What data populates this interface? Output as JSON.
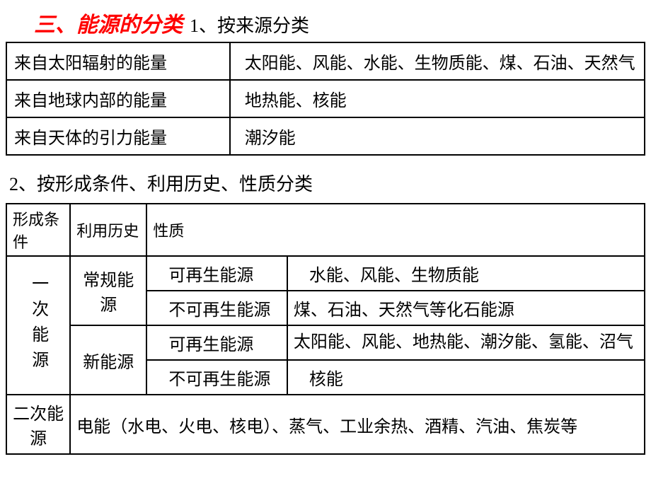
{
  "header": {
    "main_title": "三、能源的分类",
    "sub_title": "1、按来源分类"
  },
  "table1": {
    "rows": [
      {
        "left": "来自太阳辐射的能量",
        "right": "太阳能、风能、水能、生物质能、煤、石油、天然气"
      },
      {
        "left": "来自地球内部的能量",
        "right": "地热能、核能"
      },
      {
        "left": "来自天体的引力能量",
        "right": "潮汐能"
      }
    ]
  },
  "section2_title": "2、按形成条件、利用历史、性质分类",
  "table2": {
    "headers": {
      "col_a": "形成条件",
      "col_b": "利用历史",
      "col_c": "性质"
    },
    "primary_label": "一次能源",
    "conventional_label": "常规能源",
    "new_label": "新能源",
    "rows": [
      {
        "nature": "可再生能源",
        "examples": "水能、风能、生物质能"
      },
      {
        "nature": "不可再生能源",
        "examples": "煤、石油、天然气等化石能源"
      },
      {
        "nature": "可再生能源",
        "examples": "太阳能、风能、地热能、潮汐能、氢能、沼气"
      },
      {
        "nature": "不可再生能源",
        "examples": "核能"
      }
    ],
    "secondary": {
      "label": "二次能源",
      "content": "电能（水电、火电、核电）、蒸气、工业余热、酒精、汽油、焦炭等"
    }
  },
  "colors": {
    "title_color": "#ff0000",
    "text_color": "#000000",
    "border_color": "#000000",
    "background": "#ffffff"
  }
}
